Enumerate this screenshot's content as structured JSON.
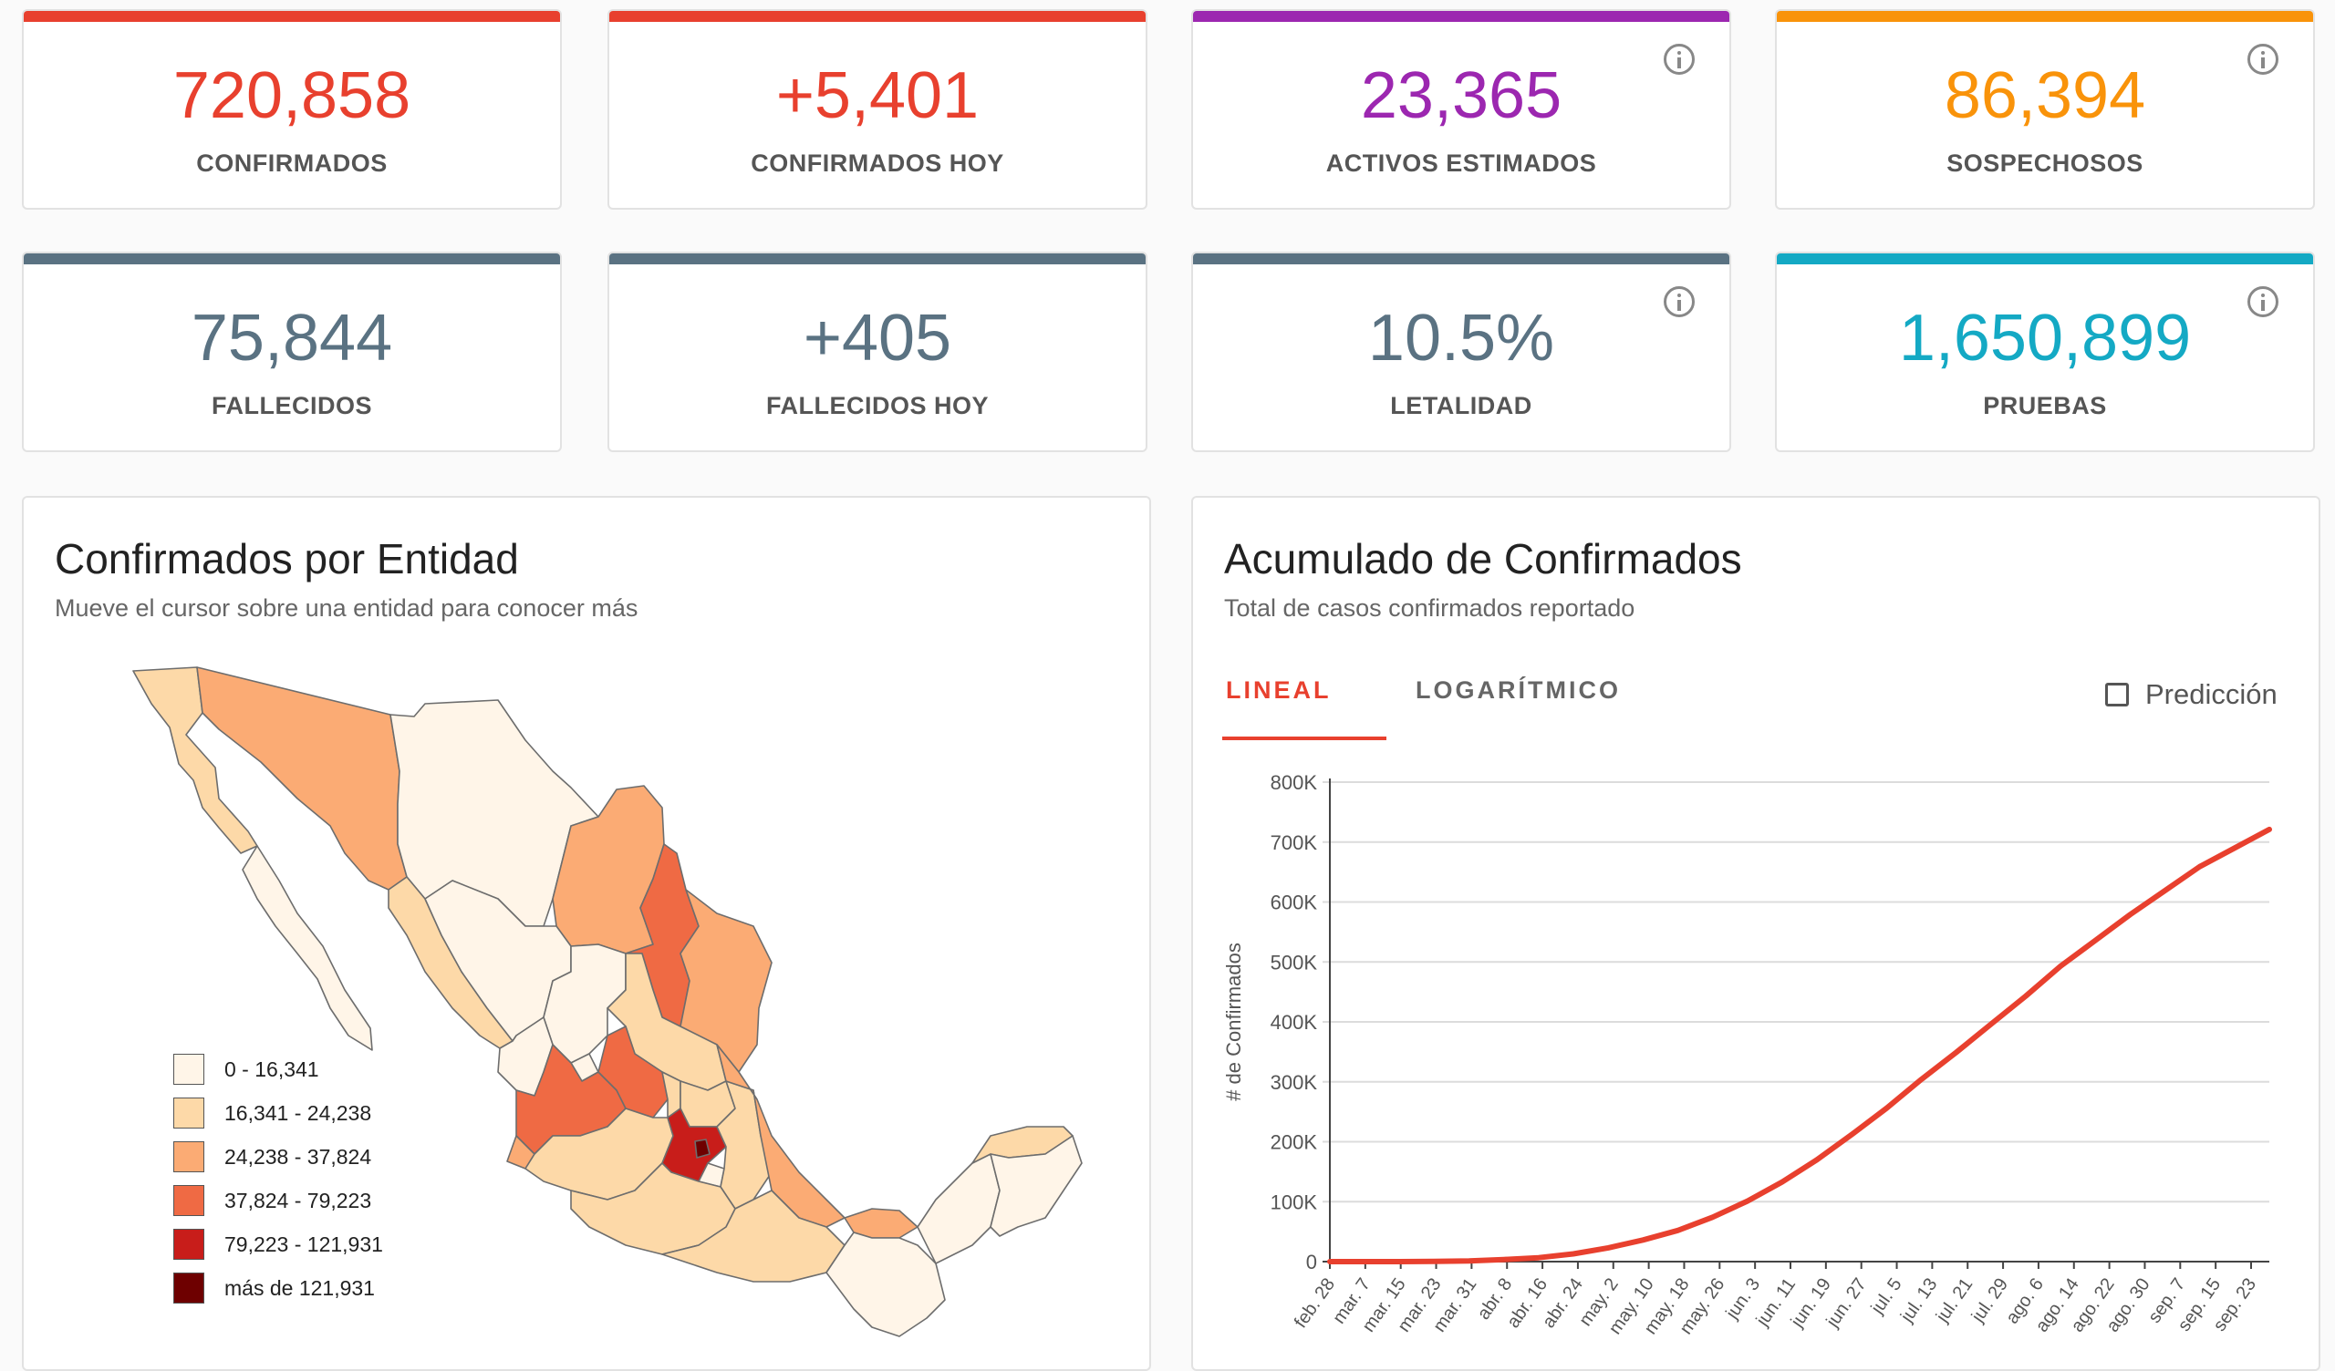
{
  "stats": [
    {
      "value": "720,858",
      "label": "CONFIRMADOS",
      "color": "#e8402e",
      "info": false
    },
    {
      "value": "+5,401",
      "label": "CONFIRMADOS HOY",
      "color": "#e8402e",
      "info": false
    },
    {
      "value": "23,365",
      "label": "ACTIVOS ESTIMADOS",
      "color": "#9c27b0",
      "info": true
    },
    {
      "value": "86,394",
      "label": "SOSPECHOSOS",
      "color": "#f9930a",
      "info": true
    },
    {
      "value": "75,844",
      "label": "FALLECIDOS",
      "color": "#5a7282",
      "info": false
    },
    {
      "value": "+405",
      "label": "FALLECIDOS HOY",
      "color": "#5a7282",
      "info": false
    },
    {
      "value": "10.5%",
      "label": "LETALIDAD",
      "color": "#5a7282",
      "info": true
    },
    {
      "value": "1,650,899",
      "label": "PRUEBAS",
      "color": "#14a9c4",
      "info": true
    }
  ],
  "map_panel": {
    "title": "Confirmados por Entidad",
    "subtitle": "Mueve el cursor sobre una entidad para conocer más",
    "legend": [
      {
        "label": "0 - 16,341",
        "color": "#fff5e8"
      },
      {
        "label": "16,341 - 24,238",
        "color": "#fdd9a8"
      },
      {
        "label": "24,238 - 37,824",
        "color": "#fbab74"
      },
      {
        "label": "37,824 - 79,223",
        "color": "#ef6a44"
      },
      {
        "label": "79,223 - 121,931",
        "color": "#c81d1a"
      },
      {
        "label": "más de 121,931",
        "color": "#6e0000"
      }
    ]
  },
  "chart_panel": {
    "title": "Acumulado de Confirmados",
    "subtitle": "Total de casos confirmados reportado",
    "tabs": [
      "LINEAL",
      "LOGARÍTMICO"
    ],
    "active_tab": "LINEAL",
    "prediction_label": "Predicción",
    "prediction_checked": false
  },
  "chart_data": {
    "type": "line",
    "ylabel": "# de Confirmados",
    "xlabel": "",
    "ylim": [
      0,
      800000
    ],
    "yticks": [
      "0",
      "100K",
      "200K",
      "300K",
      "400K",
      "500K",
      "600K",
      "700K",
      "800K"
    ],
    "xticks": [
      "feb. 28",
      "mar. 7",
      "mar. 15",
      "mar. 23",
      "mar. 31",
      "abr. 8",
      "abr. 16",
      "abr. 24",
      "may. 2",
      "may. 10",
      "may. 18",
      "may. 26",
      "jun. 3",
      "jun. 11",
      "jun. 19",
      "jun. 27",
      "jul. 5",
      "jul. 13",
      "jul. 21",
      "jul. 29",
      "ago. 6",
      "ago. 14",
      "ago. 22",
      "ago. 30",
      "sep. 7",
      "sep. 15",
      "sep. 23"
    ],
    "grid": true,
    "line_color": "#e8402e",
    "series": [
      {
        "values": [
          0,
          10,
          50,
          400,
          1200,
          3500,
          6500,
          13000,
          23000,
          36000,
          52000,
          74000,
          101000,
          133000,
          170000,
          212000,
          256000,
          304000,
          349000,
          396000,
          443000,
          493000,
          536000,
          579000,
          619000,
          659000,
          690000,
          721000
        ]
      }
    ]
  }
}
